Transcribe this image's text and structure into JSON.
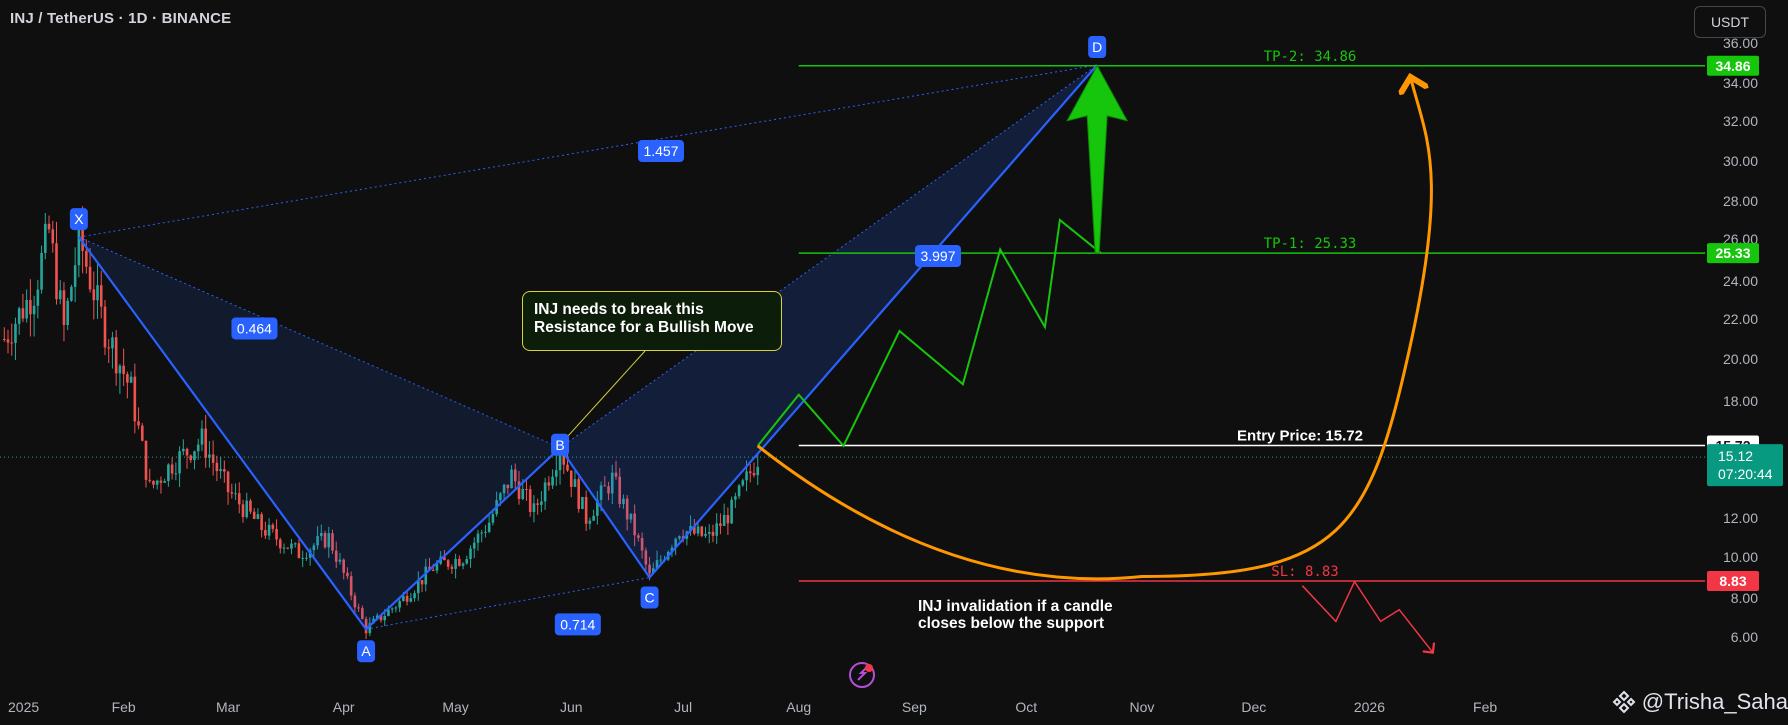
{
  "header": {
    "title": "INJ / TetherUS · 1D · BINANCE",
    "currency_button": "USDT"
  },
  "watermark": "@Trisha_Saha",
  "callout": {
    "line1": "INJ needs to break this",
    "line2": "Resistance for a Bullish Move"
  },
  "invalidation_note": {
    "line1": "INJ invalidation if a candle",
    "line2": "closes below the support"
  },
  "colors": {
    "background": "#0f0f0f",
    "up": "#26a69a",
    "down": "#ef5350",
    "pattern": "#2962ff",
    "target": "#16c60c",
    "stop": "#f23645",
    "orange": "#ff9800",
    "entry": "#ffffff"
  },
  "chart_data": {
    "type": "candlestick",
    "symbol": "INJ / TetherUS",
    "timeframe": "1D",
    "exchange": "BINANCE",
    "y_ticks": [
      "6.00",
      "8.00",
      "10.00",
      "12.00",
      "18.00",
      "20.00",
      "22.00",
      "24.00",
      "26.00",
      "28.00",
      "30.00",
      "32.00",
      "34.00",
      "36.00"
    ],
    "x_ticks": [
      "2025",
      "Feb",
      "Mar",
      "Apr",
      "May",
      "Jun",
      "Jul",
      "Aug",
      "Sep",
      "Oct",
      "Nov",
      "Dec",
      "2026",
      "Feb"
    ],
    "harmonic_pattern": {
      "points": [
        {
          "label": "X",
          "date": "2025-01-20",
          "price": 26.1
        },
        {
          "label": "A",
          "date": "2025-04-07",
          "price": 6.4
        },
        {
          "label": "B",
          "date": "2025-05-29",
          "price": 15.6
        },
        {
          "label": "C",
          "date": "2025-06-22",
          "price": 9.0
        },
        {
          "label": "D",
          "date": "2025-10-20",
          "price": 34.9
        }
      ],
      "ratios": [
        "0.464",
        "0.714",
        "1.457",
        "3.997"
      ]
    },
    "levels": [
      {
        "name": "TP-2",
        "label": "TP-2: 34.86",
        "price": 34.86,
        "tag": "34.86"
      },
      {
        "name": "TP-1",
        "label": "TP-1: 25.33",
        "price": 25.33,
        "tag": "25.33"
      },
      {
        "name": "Entry",
        "label": "Entry Price: 15.72",
        "price": 15.72,
        "tag": "15.72"
      },
      {
        "name": "SL",
        "label": "SL: 8.83",
        "price": 8.83,
        "tag": "8.83"
      }
    ],
    "current_price": {
      "price": 15.12,
      "label": "15.12",
      "countdown": "07:20:44"
    },
    "projected_path": [
      {
        "date": "2025-07-21",
        "price": 15.7
      },
      {
        "date": "2025-08-01",
        "price": 18.3
      },
      {
        "date": "2025-08-13",
        "price": 15.7
      },
      {
        "date": "2025-08-28",
        "price": 21.4
      },
      {
        "date": "2025-09-14",
        "price": 18.8
      },
      {
        "date": "2025-09-24",
        "price": 25.5
      },
      {
        "date": "2025-10-06",
        "price": 21.6
      },
      {
        "date": "2025-10-10",
        "price": 27.0
      },
      {
        "date": "2025-10-21",
        "price": 25.33
      }
    ],
    "bearish_path": [
      {
        "date": "2025-12-14",
        "price": 8.6
      },
      {
        "date": "2025-12-23",
        "price": 6.8
      },
      {
        "date": "2025-12-28",
        "price": 8.8
      },
      {
        "date": "2026-01-04",
        "price": 6.8
      },
      {
        "date": "2026-01-09",
        "price": 7.4
      },
      {
        "date": "2026-01-18",
        "price": 5.2
      }
    ],
    "candles": []
  }
}
